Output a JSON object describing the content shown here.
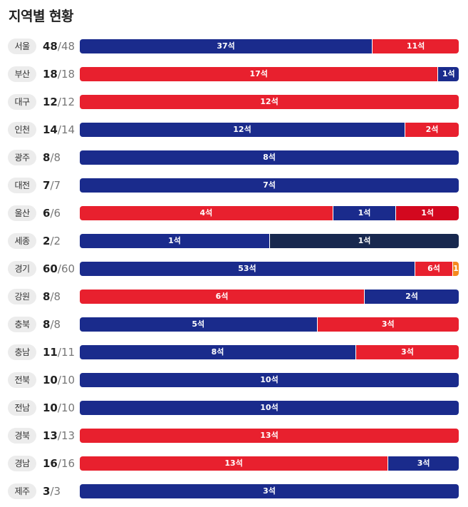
{
  "title": "지역별 현황",
  "colors": {
    "blue": "#1a2b8c",
    "red": "#e8202e",
    "darkred": "#d3081f",
    "navy": "#18284f",
    "orange": "#f5891e"
  },
  "seat_unit": "석",
  "chart_data": {
    "type": "bar",
    "orientation": "horizontal-stacked",
    "categories": [
      "서울",
      "부산",
      "대구",
      "인천",
      "광주",
      "대전",
      "울산",
      "세종",
      "경기",
      "강원",
      "충북",
      "충남",
      "전북",
      "전남",
      "경북",
      "경남",
      "제주"
    ],
    "totals": [
      48,
      18,
      12,
      14,
      8,
      7,
      6,
      2,
      60,
      8,
      8,
      11,
      10,
      10,
      13,
      16,
      3
    ],
    "won": [
      48,
      18,
      12,
      14,
      8,
      7,
      6,
      2,
      60,
      8,
      8,
      11,
      10,
      10,
      13,
      16,
      3
    ],
    "segments": [
      [
        {
          "color": "blue",
          "value": 37
        },
        {
          "color": "red",
          "value": 11
        }
      ],
      [
        {
          "color": "red",
          "value": 17
        },
        {
          "color": "blue",
          "value": 1
        }
      ],
      [
        {
          "color": "red",
          "value": 12
        }
      ],
      [
        {
          "color": "blue",
          "value": 12
        },
        {
          "color": "red",
          "value": 2
        }
      ],
      [
        {
          "color": "blue",
          "value": 8
        }
      ],
      [
        {
          "color": "blue",
          "value": 7
        }
      ],
      [
        {
          "color": "red",
          "value": 4
        },
        {
          "color": "blue",
          "value": 1
        },
        {
          "color": "darkred",
          "value": 1
        }
      ],
      [
        {
          "color": "blue",
          "value": 1
        },
        {
          "color": "navy",
          "value": 1
        }
      ],
      [
        {
          "color": "blue",
          "value": 53
        },
        {
          "color": "red",
          "value": 6
        },
        {
          "color": "orange",
          "value": 1
        }
      ],
      [
        {
          "color": "red",
          "value": 6
        },
        {
          "color": "blue",
          "value": 2
        }
      ],
      [
        {
          "color": "blue",
          "value": 5
        },
        {
          "color": "red",
          "value": 3
        }
      ],
      [
        {
          "color": "blue",
          "value": 8
        },
        {
          "color": "red",
          "value": 3
        }
      ],
      [
        {
          "color": "blue",
          "value": 10
        }
      ],
      [
        {
          "color": "blue",
          "value": 10
        }
      ],
      [
        {
          "color": "red",
          "value": 13
        }
      ],
      [
        {
          "color": "red",
          "value": 13
        },
        {
          "color": "blue",
          "value": 3
        }
      ],
      [
        {
          "color": "blue",
          "value": 3
        }
      ]
    ]
  }
}
